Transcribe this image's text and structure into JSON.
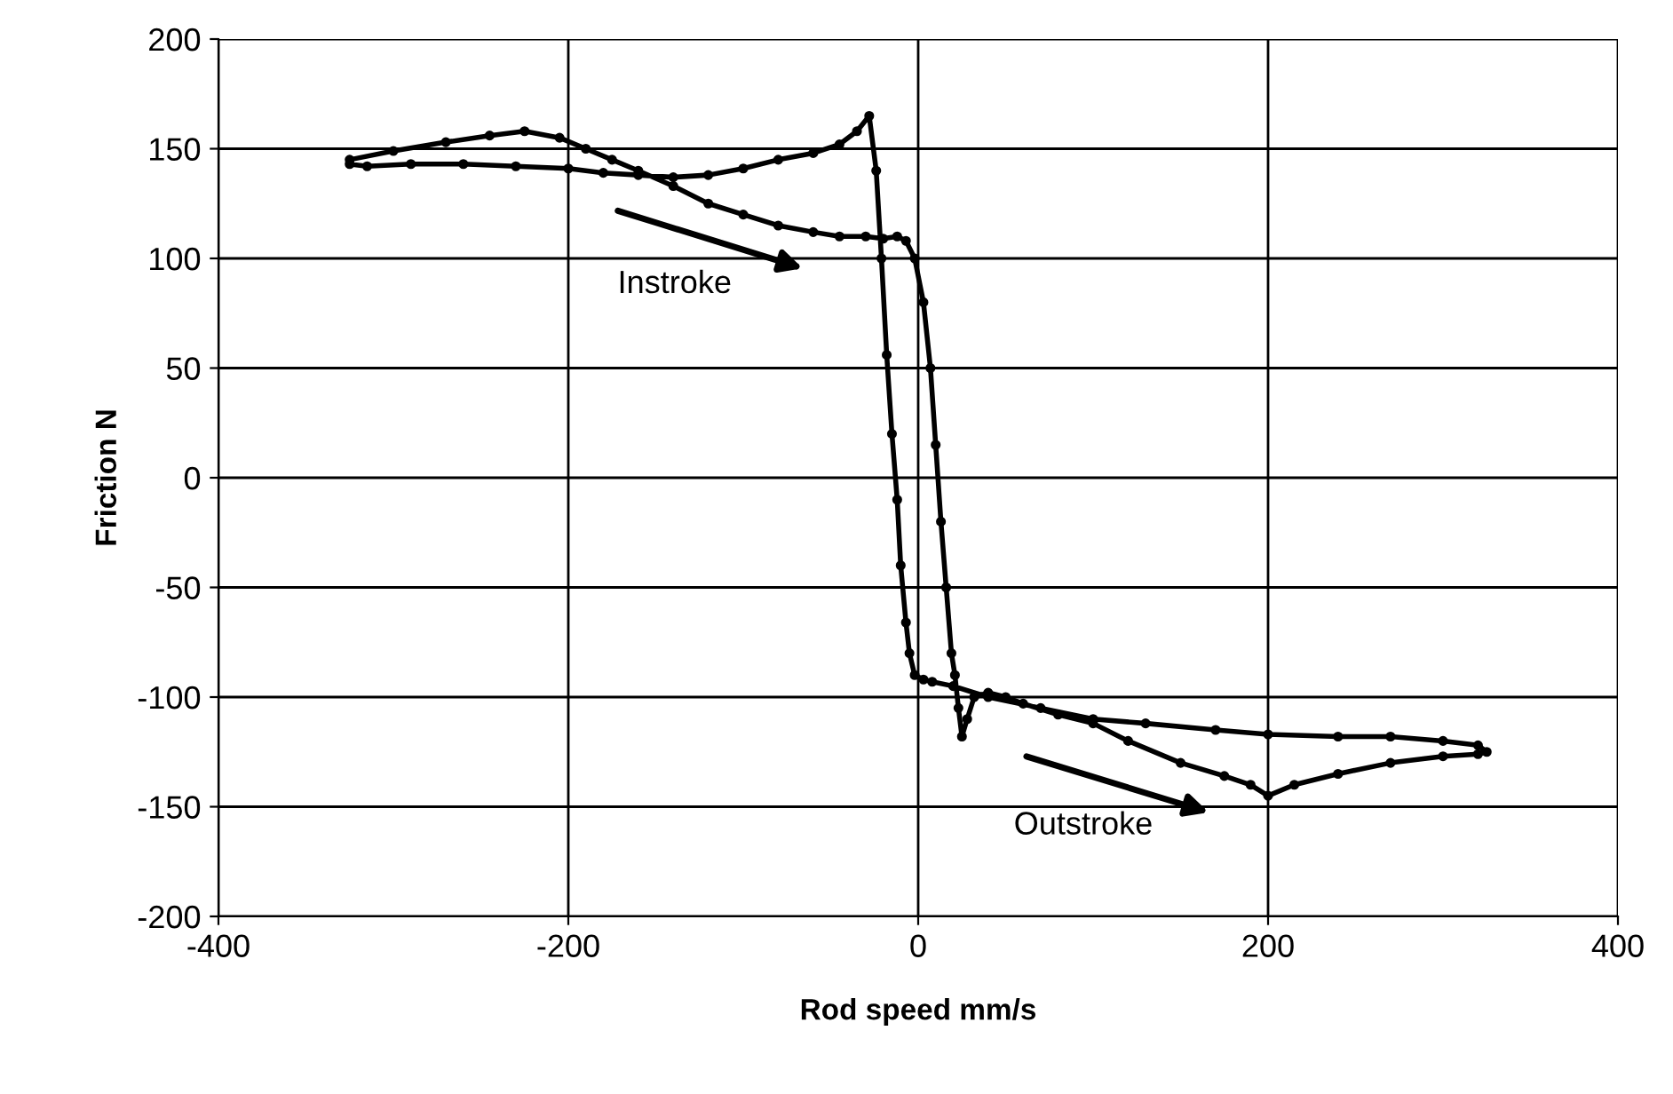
{
  "chart_data": {
    "type": "line",
    "xlabel": "Rod speed mm/s",
    "ylabel": "Friction N",
    "xlim": [
      -400,
      400
    ],
    "xticks": [
      -400,
      -200,
      0,
      200,
      400
    ],
    "ylim": [
      -200,
      200
    ],
    "yticks": [
      -200,
      -150,
      -100,
      -50,
      0,
      50,
      100,
      150,
      200
    ],
    "grid": true,
    "marker": "circle",
    "line_style": "solid",
    "series": [
      {
        "color": "#000000",
        "x": [
          -325,
          -300,
          -270,
          -245,
          -225,
          -205,
          -190,
          -175,
          -160,
          -140,
          -120,
          -100,
          -80,
          -60,
          -45,
          -30,
          -20,
          -12,
          -7,
          -2,
          3,
          7,
          10,
          13,
          16,
          19,
          21,
          23,
          25,
          28,
          32,
          40,
          50,
          60,
          80,
          100,
          120,
          150,
          175,
          190,
          200,
          215,
          240,
          270,
          300,
          320,
          325,
          320,
          300,
          270,
          240,
          200,
          170,
          130,
          100,
          70,
          40,
          20,
          8,
          3,
          -2,
          -5,
          -7,
          -10,
          -12,
          -15,
          -18,
          -21,
          -24,
          -28,
          -35,
          -45,
          -60,
          -80,
          -100,
          -120,
          -140,
          -160,
          -180,
          -200,
          -230,
          -260,
          -290,
          -315,
          -325
        ],
        "values": [
          145,
          149,
          153,
          156,
          158,
          155,
          150,
          145,
          140,
          133,
          125,
          120,
          115,
          112,
          110,
          110,
          109,
          110,
          108,
          100,
          80,
          50,
          15,
          -20,
          -50,
          -80,
          -90,
          -105,
          -118,
          -110,
          -100,
          -98,
          -100,
          -103,
          -108,
          -112,
          -120,
          -130,
          -136,
          -140,
          -145,
          -140,
          -135,
          -130,
          -127,
          -126,
          -125,
          -122,
          -120,
          -118,
          -118,
          -117,
          -115,
          -112,
          -110,
          -105,
          -100,
          -95,
          -93,
          -92,
          -90,
          -80,
          -66,
          -40,
          -10,
          20,
          56,
          100,
          140,
          165,
          158,
          152,
          148,
          145,
          141,
          138,
          137,
          138,
          139,
          141,
          142,
          143,
          143,
          142,
          143
        ]
      }
    ],
    "annotations": [
      "Instroke",
      "Outstroke"
    ]
  }
}
